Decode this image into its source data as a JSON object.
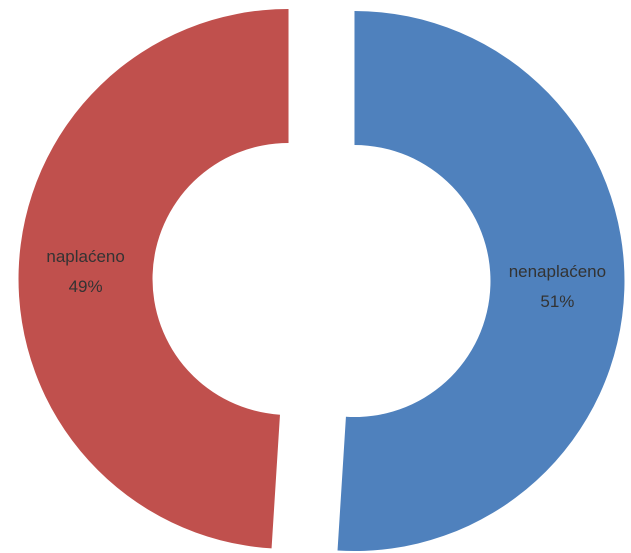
{
  "chart_data": {
    "type": "donut",
    "categories": [
      "nenaplaćeno",
      "naplaćeno"
    ],
    "values": [
      51,
      49
    ],
    "value_labels": [
      "51%",
      "49%"
    ],
    "colors": [
      "#4f81bd",
      "#c0504d"
    ]
  }
}
